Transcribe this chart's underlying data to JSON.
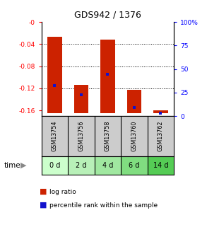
{
  "title": "GDS942 / 1376",
  "categories": [
    "GSM13754",
    "GSM13756",
    "GSM13758",
    "GSM13760",
    "GSM13762"
  ],
  "time_labels": [
    "0 d",
    "2 d",
    "4 d",
    "6 d",
    "14 d"
  ],
  "log_ratios": [
    -0.027,
    -0.113,
    -0.032,
    -0.123,
    -0.159
  ],
  "percentile_ranks": [
    0.3,
    0.2,
    0.43,
    0.06,
    0.005
  ],
  "bar_color": "#cc2200",
  "marker_color": "#1111cc",
  "ylim_left": [
    -0.17,
    0.0
  ],
  "yticks_left": [
    0.0,
    -0.04,
    -0.08,
    -0.12,
    -0.16
  ],
  "ytick_labels_left": [
    "-0",
    "-0.04",
    "-0.08",
    "-0.12",
    "-0.16"
  ],
  "ylim_right": [
    0.0,
    1.0
  ],
  "yticks_right": [
    0.0,
    0.25,
    0.5,
    0.75,
    1.0
  ],
  "ytick_labels_right": [
    "0",
    "25",
    "50",
    "75",
    "100%"
  ],
  "background_color": "#ffffff",
  "gsm_row_color": "#cccccc",
  "time_row_colors": [
    "#ccffcc",
    "#b8f0b8",
    "#a0e8a0",
    "#80dd80",
    "#55cc55"
  ],
  "legend_red_label": "log ratio",
  "legend_blue_label": "percentile rank within the sample",
  "bar_width": 0.55,
  "ymin": -0.165
}
